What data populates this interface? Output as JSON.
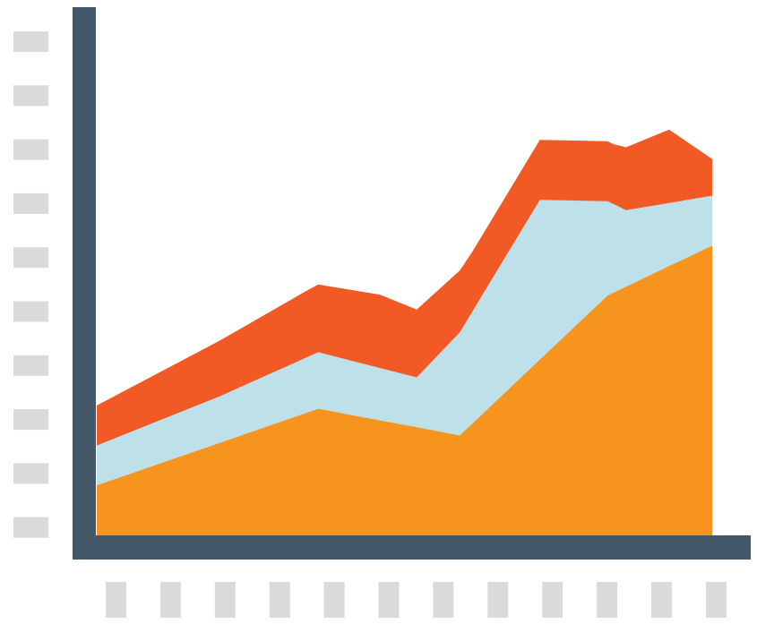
{
  "colors": {
    "background": "#ffffff",
    "axis": "#435869",
    "tick_placeholder": "#d9dadc",
    "series_bottom": "#f7941e",
    "series_middle": "#bee0e8",
    "series_top": "#f15a24"
  },
  "chart_data": {
    "type": "area",
    "stacked": true,
    "title": "",
    "xlabel": "",
    "ylabel": "",
    "grid": false,
    "legend": "none",
    "y_tick_count": 10,
    "x_tick_count": 12,
    "series": [
      {
        "color": "#f7941e",
        "x": [
          0.0,
          0.36,
          0.59,
          0.83,
          1.0
        ],
        "values": [
          1.5,
          3.8,
          3.0,
          7.2,
          8.7
        ]
      },
      {
        "color": "#bee0e8",
        "x": [
          0.0,
          0.2,
          0.36,
          0.52,
          0.59,
          0.72,
          0.86,
          1.0
        ],
        "values": [
          1.2,
          1.4,
          1.7,
          1.5,
          3.1,
          4.8,
          2.3,
          1.5
        ]
      },
      {
        "color": "#f15a24",
        "x": [
          0.0,
          0.34,
          0.46,
          0.61,
          0.84,
          0.93,
          1.0
        ],
        "values": [
          1.2,
          2.0,
          2.2,
          1.8,
          1.8,
          2.2,
          1.1
        ]
      }
    ]
  }
}
